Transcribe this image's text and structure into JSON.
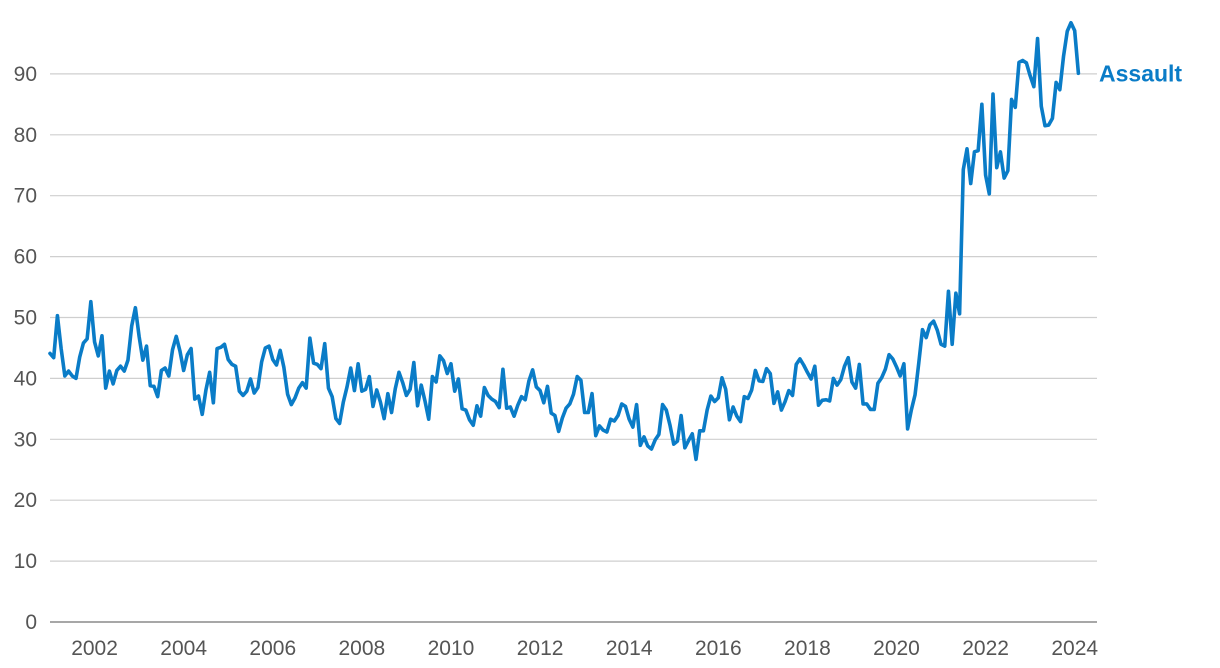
{
  "chart_data": {
    "type": "line",
    "title": "",
    "xlabel": "",
    "ylabel": "",
    "ylim": [
      0,
      100
    ],
    "yticks": [
      0,
      10,
      20,
      30,
      40,
      50,
      60,
      70,
      80,
      90
    ],
    "xticks": [
      2002,
      2004,
      2006,
      2008,
      2010,
      2012,
      2014,
      2016,
      2018,
      2020,
      2022,
      2024
    ],
    "xlim": [
      2001.0,
      2024.5
    ],
    "grid": true,
    "colors": {
      "series": "#0a7cc7",
      "grid": "#cfcfcf",
      "text": "#555555"
    },
    "series": [
      {
        "name": "Assault",
        "x_start": 2001.0,
        "step": 0.08333,
        "values": [
          44.1,
          43.4,
          50.3,
          44.9,
          40.4,
          41.2,
          40.4,
          40.0,
          43.5,
          45.8,
          46.5,
          52.6,
          46.0,
          43.7,
          47.0,
          38.4,
          41.2,
          39.1,
          41.3,
          42.0,
          41.2,
          43.0,
          48.6,
          51.6,
          46.9,
          43.0,
          45.3,
          38.8,
          38.7,
          37.0,
          41.3,
          41.7,
          40.4,
          44.7,
          46.9,
          44.5,
          41.3,
          43.9,
          44.9,
          36.6,
          37.1,
          34.1,
          38.1,
          41.0,
          36.0,
          44.9,
          45.1,
          45.6,
          43.1,
          42.3,
          42.0,
          37.9,
          37.2,
          37.9,
          39.9,
          37.6,
          38.5,
          42.7,
          45.0,
          45.3,
          43.1,
          42.2,
          44.6,
          41.8,
          37.4,
          35.7,
          36.8,
          38.4,
          39.3,
          38.4,
          46.6,
          42.5,
          42.3,
          41.6,
          45.7,
          38.4,
          37.0,
          33.4,
          32.6,
          36.1,
          38.6,
          41.7,
          38.0,
          42.4,
          37.9,
          38.2,
          40.3,
          35.4,
          38.1,
          36.1,
          33.4,
          37.5,
          34.4,
          38.3,
          41.0,
          39.3,
          37.2,
          38.2,
          42.6,
          35.5,
          38.9,
          36.3,
          33.3,
          40.3,
          39.4,
          43.7,
          42.9,
          40.8,
          42.4,
          37.9,
          39.9,
          35.0,
          34.8,
          33.2,
          32.3,
          35.5,
          33.8,
          38.5,
          37.2,
          36.6,
          36.2,
          35.2,
          41.5,
          35.1,
          35.3,
          33.8,
          35.6,
          37.0,
          36.5,
          39.6,
          41.4,
          38.6,
          38.0,
          36.0,
          38.7,
          34.3,
          33.9,
          31.3,
          33.5,
          35.1,
          35.8,
          37.4,
          40.3,
          39.7,
          34.4,
          34.4,
          37.5,
          30.6,
          32.2,
          31.5,
          31.2,
          33.3,
          33.0,
          33.9,
          35.8,
          35.4,
          33.3,
          32.0,
          35.7,
          29.0,
          30.4,
          28.9,
          28.4,
          29.9,
          30.8,
          35.7,
          34.8,
          32.3,
          29.2,
          29.7,
          33.9,
          28.6,
          29.8,
          30.9,
          26.7,
          31.4,
          31.4,
          34.8,
          37.1,
          36.2,
          36.8,
          40.1,
          38.2,
          33.2,
          35.3,
          33.8,
          32.9,
          37.0,
          36.7,
          38.1,
          41.3,
          39.6,
          39.5,
          41.6,
          40.8,
          35.9,
          37.8,
          34.8,
          36.2,
          38.0,
          37.2,
          42.3,
          43.2,
          42.2,
          41.0,
          39.9,
          42.0,
          35.6,
          36.4,
          36.5,
          36.3,
          40.0,
          38.9,
          39.8,
          42.0,
          43.4,
          39.4,
          38.4,
          42.3,
          35.8,
          35.8,
          34.9,
          34.9,
          39.2,
          40.1,
          41.5,
          43.9,
          43.2,
          41.9,
          40.4,
          42.4,
          31.7,
          34.8,
          37.3,
          42.5,
          48.0,
          46.7,
          48.8,
          49.4,
          47.9,
          45.6,
          45.3,
          54.3,
          45.6,
          54.0,
          50.6,
          74.3,
          77.7,
          72.0,
          77.2,
          77.4,
          85.0,
          73.4,
          70.3,
          86.7,
          74.6,
          77.2,
          72.9,
          74.1,
          85.8,
          84.5,
          91.9,
          92.2,
          91.8,
          89.7,
          87.9,
          95.8,
          84.7,
          81.5,
          81.6,
          82.7,
          88.6,
          87.4,
          92.9,
          97.0,
          98.4,
          97.1,
          90.1
        ]
      }
    ]
  }
}
